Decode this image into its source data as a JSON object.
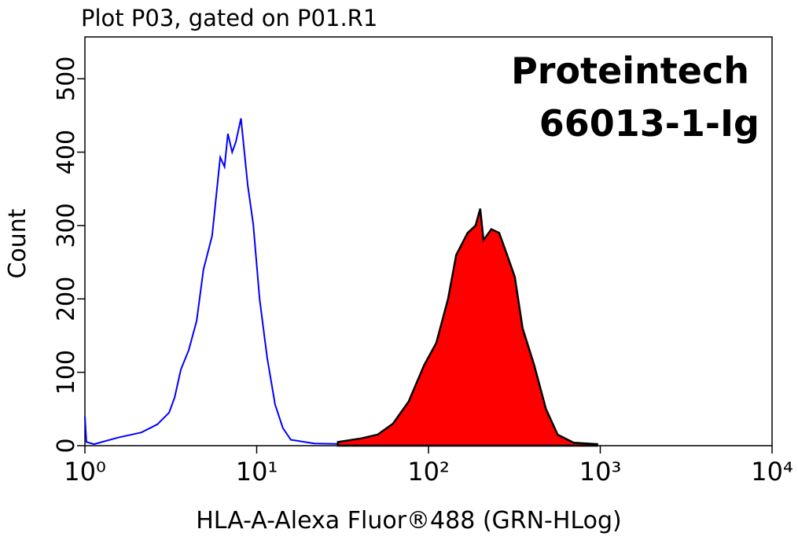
{
  "chart_data": {
    "type": "histogram-overlay",
    "title": "Plot P03, gated on P01.R1",
    "annotations": [
      "Proteintech",
      "66013-1-Ig"
    ],
    "x_label": "HLA-A-Alexa Fluor®488 (GRN-HLog)",
    "y_label": "Count",
    "xscale": "log",
    "xlim": [
      1,
      10000
    ],
    "xticks": [
      {
        "value": 1,
        "label": "10⁰"
      },
      {
        "value": 10,
        "label": "10¹"
      },
      {
        "value": 100,
        "label": "10²"
      },
      {
        "value": 1000,
        "label": "10³"
      },
      {
        "value": 10000,
        "label": "10⁴"
      }
    ],
    "ylim": [
      0,
      557
    ],
    "yticks": [
      0,
      100,
      200,
      300,
      400,
      500
    ],
    "series": [
      {
        "color": "#0000ff",
        "filled": false,
        "x": [
          1.0,
          1.02,
          1.13,
          1.56,
          2.13,
          2.64,
          3.09,
          3.33,
          3.62,
          4.02,
          4.47,
          4.9,
          5.5,
          6.13,
          6.5,
          6.8,
          7.2,
          7.56,
          8.1,
          8.87,
          9.55,
          10.4,
          11.5,
          12.8,
          14.2,
          15.8,
          21.7,
          36.7
        ],
        "values": [
          40,
          5,
          2,
          11,
          18,
          29,
          45,
          66,
          104,
          130,
          170,
          240,
          286,
          393,
          380,
          425,
          400,
          414,
          446,
          355,
          302,
          200,
          120,
          56,
          24,
          8,
          3,
          2
        ]
      },
      {
        "color": "#ff0000",
        "filled": true,
        "x": [
          29.7,
          40.7,
          50.5,
          62.1,
          76.6,
          94.5,
          111,
          130,
          145,
          169,
          188,
          200,
          209,
          232,
          258,
          287,
          318,
          353,
          412,
          483,
          565,
          700,
          960
        ],
        "values": [
          5,
          10,
          15,
          30,
          60,
          110,
          140,
          200,
          260,
          290,
          300,
          323,
          280,
          295,
          290,
          260,
          230,
          160,
          110,
          50,
          15,
          4,
          2
        ]
      }
    ]
  }
}
